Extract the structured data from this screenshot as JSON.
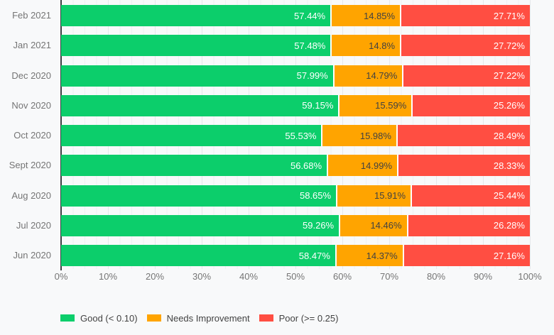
{
  "chart_data": {
    "type": "bar",
    "orientation": "horizontal-stacked",
    "title": "",
    "xlabel": "",
    "ylabel": "",
    "categories": [
      "Feb 2021",
      "Jan 2021",
      "Dec 2020",
      "Nov 2020",
      "Oct 2020",
      "Sept 2020",
      "Aug 2020",
      "Jul 2020",
      "Jun 2020"
    ],
    "series": [
      {
        "name": "Good (< 0.10)",
        "color": "#0CCE6B",
        "label_color": "#FFFFFF",
        "values": [
          57.44,
          57.48,
          57.99,
          59.15,
          55.53,
          56.68,
          58.65,
          59.26,
          58.47
        ],
        "labels": [
          "57.44%",
          "57.48%",
          "57.99%",
          "59.15%",
          "55.53%",
          "56.68%",
          "58.65%",
          "59.26%",
          "58.47%"
        ]
      },
      {
        "name": "Needs Improvement",
        "color": "#FFA400",
        "label_color": "#424242",
        "values": [
          14.85,
          14.8,
          14.79,
          15.59,
          15.98,
          14.99,
          15.91,
          14.46,
          14.37
        ],
        "labels": [
          "14.85%",
          "14.8%",
          "14.79%",
          "15.59%",
          "15.98%",
          "14.99%",
          "15.91%",
          "14.46%",
          "14.37%"
        ]
      },
      {
        "name": "Poor (>= 0.25)",
        "color": "#FF4E42",
        "label_color": "#FFFFFF",
        "values": [
          27.71,
          27.72,
          27.22,
          25.26,
          28.49,
          28.33,
          25.44,
          26.28,
          27.16
        ],
        "labels": [
          "27.71%",
          "27.72%",
          "27.22%",
          "25.26%",
          "28.49%",
          "28.33%",
          "25.44%",
          "26.28%",
          "27.16%"
        ]
      }
    ],
    "x_axis": {
      "min": 0,
      "max": 100,
      "tick_labels": [
        "0%",
        "10%",
        "20%",
        "30%",
        "40%",
        "50%",
        "60%",
        "70%",
        "80%",
        "90%",
        "100%"
      ]
    },
    "grid": {
      "on": true,
      "minor_step_percent": 2.5,
      "major_step_percent": 10
    },
    "legend": {
      "position": "bottom",
      "items": [
        "Good (< 0.10)",
        "Needs Improvement",
        "Poor (>= 0.25)"
      ]
    },
    "colors": {
      "background": "#F8F9FA",
      "gridline_minor": "#EEF0F3",
      "gridline_major": "#E6E8EB",
      "axis_line": "#3C4043",
      "axis_text": "#757575",
      "category_text": "#757575",
      "legend_text": "#424242",
      "segment_separator": "#FFFFFF"
    }
  }
}
